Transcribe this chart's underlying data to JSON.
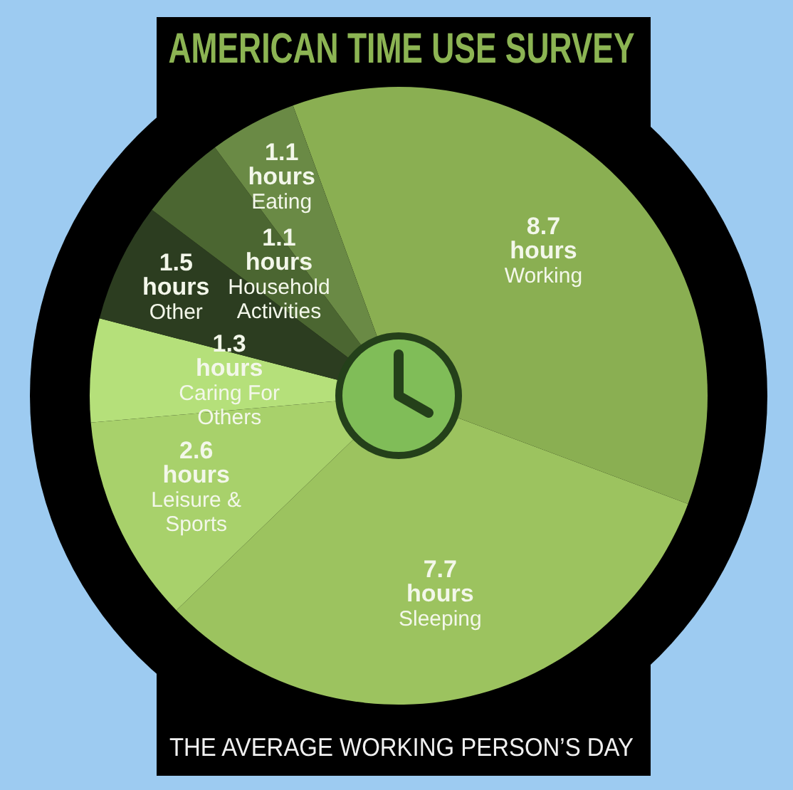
{
  "chart_data": {
    "type": "pie",
    "title": "AMERICAN TIME USE SURVEY",
    "subtitle": "THE AVERAGE WORKING PERSON’S DAY",
    "categories": [
      "Working",
      "Sleeping",
      "Leisure & Sports",
      "Caring For Others",
      "Other",
      "Household Activities",
      "Eating"
    ],
    "values": [
      8.7,
      7.7,
      2.6,
      1.3,
      1.5,
      1.1,
      1.1
    ],
    "colors": [
      "#8aaf52",
      "#9cc35f",
      "#a8d16b",
      "#b5e07a",
      "#2c3d20",
      "#4b6631",
      "#6a8a45"
    ],
    "value_labels": [
      "8.7 hours",
      "7.7 hours",
      "2.6 hours",
      "1.3 hours",
      "1.5 hours",
      "1.1 hours",
      "1.1 hours"
    ]
  }
}
